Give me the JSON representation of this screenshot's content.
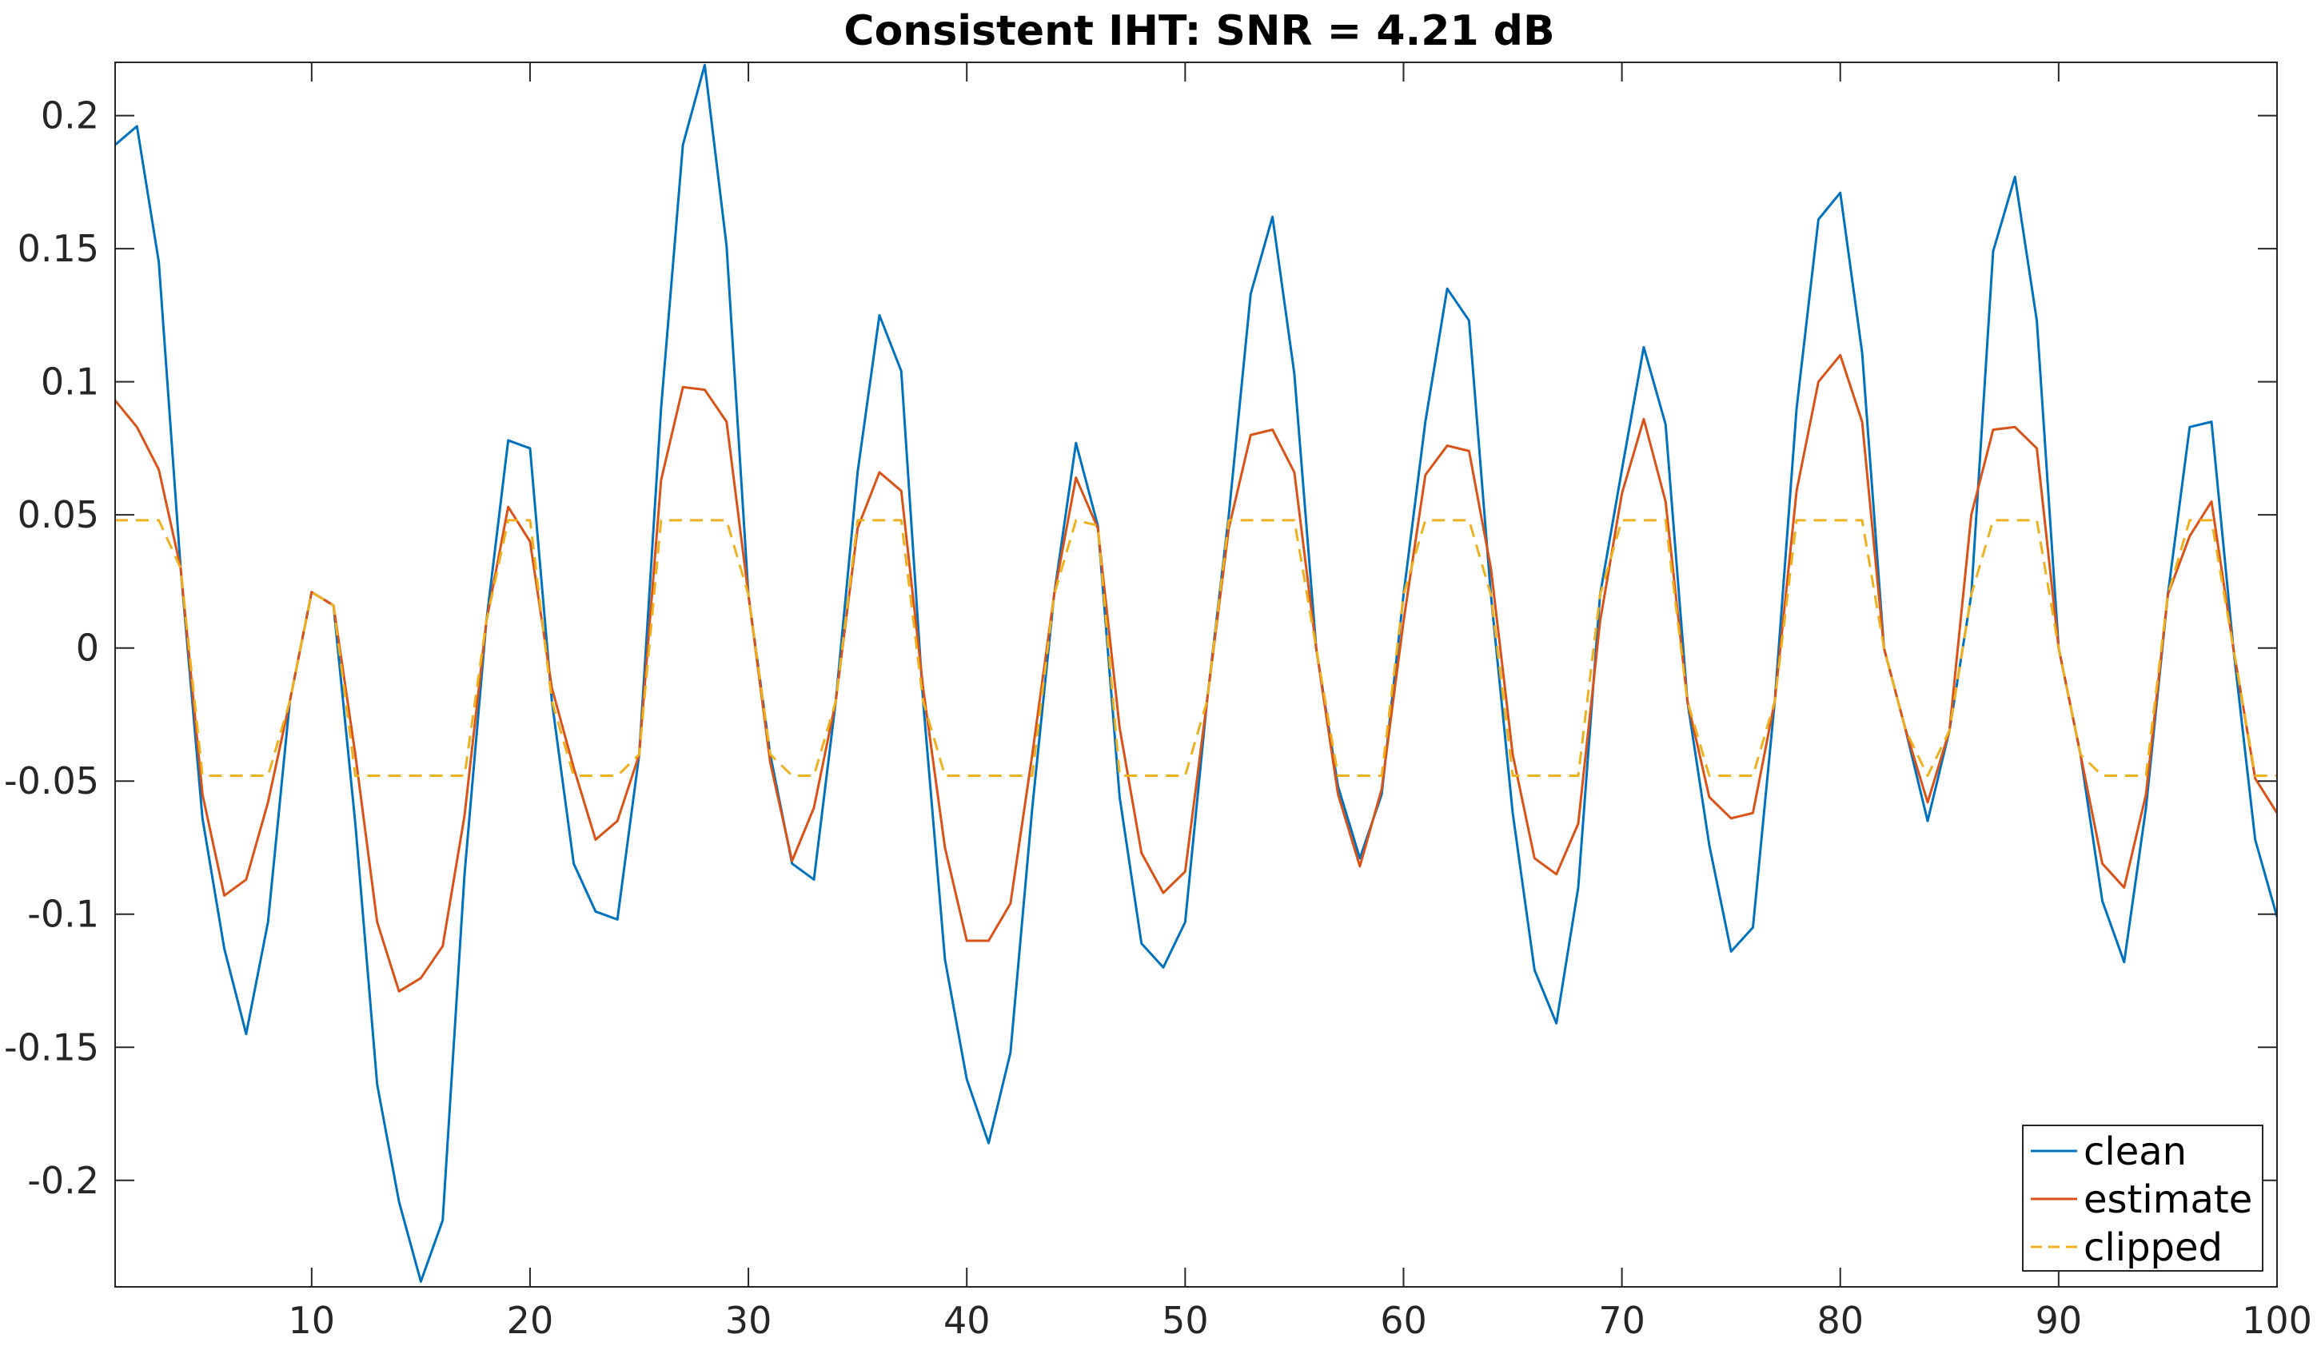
{
  "chart_data": {
    "type": "line",
    "title": "Consistent IHT: SNR = 4.21 dB",
    "xlabel": "",
    "ylabel": "",
    "xlim": [
      1,
      100
    ],
    "ylim": [
      -0.24,
      0.22
    ],
    "xticks": [
      10,
      20,
      30,
      40,
      50,
      60,
      70,
      80,
      90,
      100
    ],
    "yticks": [
      -0.2,
      -0.15,
      -0.1,
      -0.05,
      0,
      0.05,
      0.1,
      0.15,
      0.2
    ],
    "xtick_labels": [
      "10",
      "20",
      "30",
      "40",
      "50",
      "60",
      "70",
      "80",
      "90",
      "100"
    ],
    "ytick_labels": [
      "-0.2",
      "-0.15",
      "-0.1",
      "-0.05",
      "0",
      "0.05",
      "0.1",
      "0.15",
      "0.2"
    ],
    "grid": false,
    "legend_position": "bottom-right",
    "x": [
      1,
      2,
      3,
      4,
      5,
      6,
      7,
      8,
      9,
      10,
      11,
      12,
      13,
      14,
      15,
      16,
      17,
      18,
      19,
      20,
      21,
      22,
      23,
      24,
      25,
      26,
      27,
      28,
      29,
      30,
      31,
      32,
      33,
      34,
      35,
      36,
      37,
      38,
      39,
      40,
      41,
      42,
      43,
      44,
      45,
      46,
      47,
      48,
      49,
      50,
      51,
      52,
      53,
      54,
      55,
      56,
      57,
      58,
      59,
      60,
      61,
      62,
      63,
      64,
      65,
      66,
      67,
      68,
      69,
      70,
      71,
      72,
      73,
      74,
      75,
      76,
      77,
      78,
      79,
      80,
      81,
      82,
      83,
      84,
      85,
      86,
      87,
      88,
      89,
      90,
      91,
      92,
      93,
      94,
      95,
      96,
      97,
      98,
      99,
      100
    ],
    "series": [
      {
        "name": "clean",
        "color": "#0072BD",
        "dash": "solid",
        "values": [
          0.189,
          0.196,
          0.145,
          0.03,
          -0.064,
          -0.113,
          -0.145,
          -0.103,
          -0.02,
          0.021,
          0.016,
          -0.066,
          -0.164,
          -0.208,
          -0.238,
          -0.215,
          -0.085,
          0.01,
          0.078,
          0.075,
          -0.02,
          -0.081,
          -0.099,
          -0.102,
          -0.04,
          0.09,
          0.189,
          0.219,
          0.151,
          0.02,
          -0.04,
          -0.081,
          -0.087,
          -0.02,
          0.066,
          0.125,
          0.104,
          -0.02,
          -0.117,
          -0.162,
          -0.186,
          -0.152,
          -0.06,
          0.02,
          0.077,
          0.046,
          -0.056,
          -0.111,
          -0.12,
          -0.103,
          -0.02,
          0.05,
          0.133,
          0.162,
          0.103,
          0.0,
          -0.052,
          -0.079,
          -0.055,
          0.02,
          0.085,
          0.135,
          0.123,
          0.02,
          -0.062,
          -0.121,
          -0.141,
          -0.09,
          0.02,
          0.067,
          0.113,
          0.084,
          -0.02,
          -0.074,
          -0.114,
          -0.105,
          -0.02,
          0.09,
          0.161,
          0.171,
          0.111,
          0.0,
          -0.031,
          -0.065,
          -0.031,
          0.02,
          0.149,
          0.177,
          0.123,
          0.0,
          -0.04,
          -0.095,
          -0.118,
          -0.06,
          0.02,
          0.083,
          0.085,
          0.0,
          -0.072,
          -0.101
        ]
      },
      {
        "name": "estimate",
        "color": "#D95319",
        "dash": "solid",
        "values": [
          0.093,
          0.083,
          0.067,
          0.03,
          -0.055,
          -0.093,
          -0.087,
          -0.058,
          -0.02,
          0.021,
          0.016,
          -0.04,
          -0.103,
          -0.129,
          -0.124,
          -0.112,
          -0.063,
          0.01,
          0.053,
          0.04,
          -0.015,
          -0.045,
          -0.072,
          -0.065,
          -0.04,
          0.063,
          0.098,
          0.097,
          0.085,
          0.02,
          -0.043,
          -0.08,
          -0.06,
          -0.02,
          0.045,
          0.066,
          0.059,
          -0.015,
          -0.075,
          -0.11,
          -0.11,
          -0.096,
          -0.04,
          0.02,
          0.064,
          0.045,
          -0.03,
          -0.077,
          -0.092,
          -0.084,
          -0.02,
          0.045,
          0.08,
          0.082,
          0.066,
          0.0,
          -0.055,
          -0.082,
          -0.053,
          0.01,
          0.065,
          0.076,
          0.074,
          0.03,
          -0.04,
          -0.079,
          -0.085,
          -0.066,
          0.01,
          0.058,
          0.086,
          0.055,
          -0.02,
          -0.056,
          -0.064,
          -0.062,
          -0.02,
          0.059,
          0.1,
          0.11,
          0.085,
          0.0,
          -0.031,
          -0.058,
          -0.031,
          0.05,
          0.082,
          0.083,
          0.075,
          0.0,
          -0.04,
          -0.081,
          -0.09,
          -0.055,
          0.02,
          0.042,
          0.055,
          0.0,
          -0.049,
          -0.062
        ]
      },
      {
        "name": "clipped",
        "color": "#EDB120",
        "dash": "dashed",
        "values": [
          0.048,
          0.048,
          0.048,
          0.03,
          -0.048,
          -0.048,
          -0.048,
          -0.048,
          -0.02,
          0.021,
          0.016,
          -0.048,
          -0.048,
          -0.048,
          -0.048,
          -0.048,
          -0.048,
          0.01,
          0.048,
          0.048,
          -0.02,
          -0.048,
          -0.048,
          -0.048,
          -0.04,
          0.048,
          0.048,
          0.048,
          0.048,
          0.02,
          -0.04,
          -0.048,
          -0.048,
          -0.02,
          0.048,
          0.048,
          0.048,
          -0.02,
          -0.048,
          -0.048,
          -0.048,
          -0.048,
          -0.048,
          0.02,
          0.048,
          0.046,
          -0.048,
          -0.048,
          -0.048,
          -0.048,
          -0.02,
          0.048,
          0.048,
          0.048,
          0.048,
          0.0,
          -0.048,
          -0.048,
          -0.048,
          0.02,
          0.048,
          0.048,
          0.048,
          0.02,
          -0.048,
          -0.048,
          -0.048,
          -0.048,
          0.02,
          0.048,
          0.048,
          0.048,
          -0.02,
          -0.048,
          -0.048,
          -0.048,
          -0.02,
          0.048,
          0.048,
          0.048,
          0.048,
          0.0,
          -0.031,
          -0.048,
          -0.031,
          0.02,
          0.048,
          0.048,
          0.048,
          0.0,
          -0.04,
          -0.048,
          -0.048,
          -0.048,
          0.02,
          0.048,
          0.048,
          0.0,
          -0.048,
          -0.048
        ]
      }
    ]
  }
}
